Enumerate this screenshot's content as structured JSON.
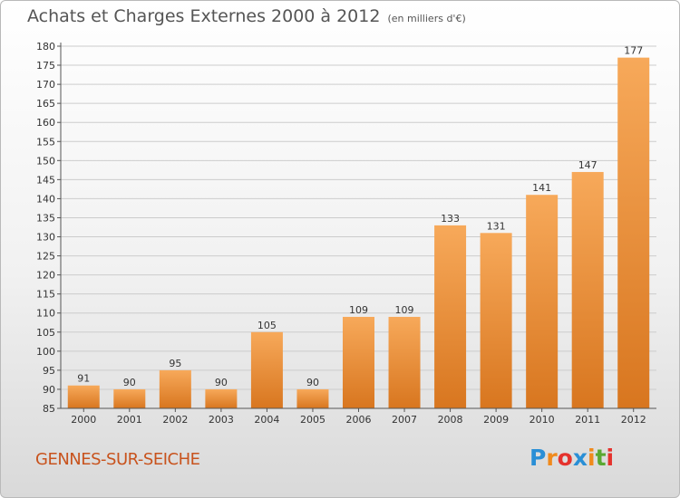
{
  "title": "Achats et Charges Externes 2000 à 2012",
  "subtitle": "(en milliers d'€)",
  "commune": "GENNES-SUR-SEICHE",
  "logo": {
    "letters": [
      "P",
      "r",
      "o",
      "x",
      "i",
      "t",
      "i"
    ],
    "colors": [
      "#2a8fd6",
      "#f08a1c",
      "#e5322d",
      "#2a8fd6",
      "#f08a1c",
      "#5aa832",
      "#e5322d"
    ]
  },
  "colors": {
    "bar_light": "#f7a95a",
    "bar_dark": "#d8761f",
    "grid": "#cccccc",
    "text": "#333333"
  },
  "chart_data": {
    "type": "bar",
    "categories": [
      "2000",
      "2001",
      "2002",
      "2003",
      "2004",
      "2005",
      "2006",
      "2007",
      "2008",
      "2009",
      "2010",
      "2011",
      "2012"
    ],
    "values": [
      91,
      90,
      95,
      90,
      105,
      90,
      109,
      109,
      133,
      131,
      141,
      147,
      177
    ],
    "title": "Achats et Charges Externes 2000 à 2012",
    "ylim": [
      85,
      180
    ],
    "yticks": [
      85,
      90,
      95,
      100,
      105,
      110,
      115,
      120,
      125,
      130,
      135,
      140,
      145,
      150,
      155,
      160,
      165,
      170,
      175,
      180
    ],
    "grid": true
  }
}
